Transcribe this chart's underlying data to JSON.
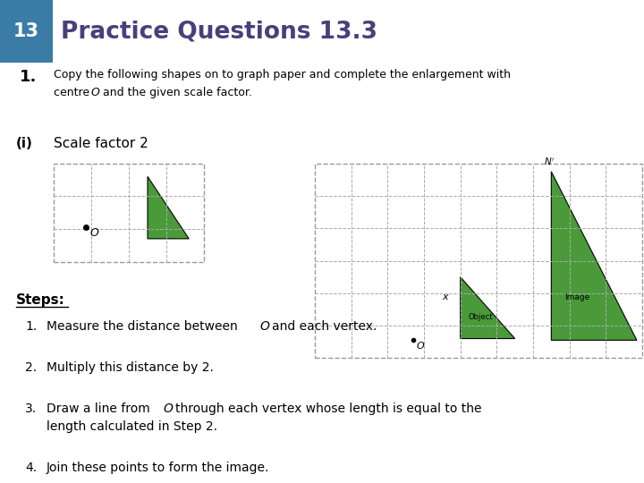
{
  "title": "Practice Questions 13.3",
  "chapter_num": "13",
  "header_bg": "#3a7ca5",
  "header_text_color": "#4a3f7a",
  "question_bg": "#e8e8f0",
  "question_num": "1.",
  "question_text": "Copy the following shapes on to graph paper and complete the enlargement with\ncentre O and the given scale factor.",
  "part_label": "(i)",
  "scale_factor_text": "Scale factor 2",
  "steps_title": "Steps:",
  "steps": [
    "Measure the distance between O and each vertex.",
    "Multiply this distance by 2.",
    "Draw a line from O through each vertex whose length is equal to the length calculated in Step 2.",
    "Join these points to form the image."
  ],
  "green_color": "#4a9a3a",
  "grid_color": "#aaaaaa",
  "dashed_border_color": "#999999"
}
